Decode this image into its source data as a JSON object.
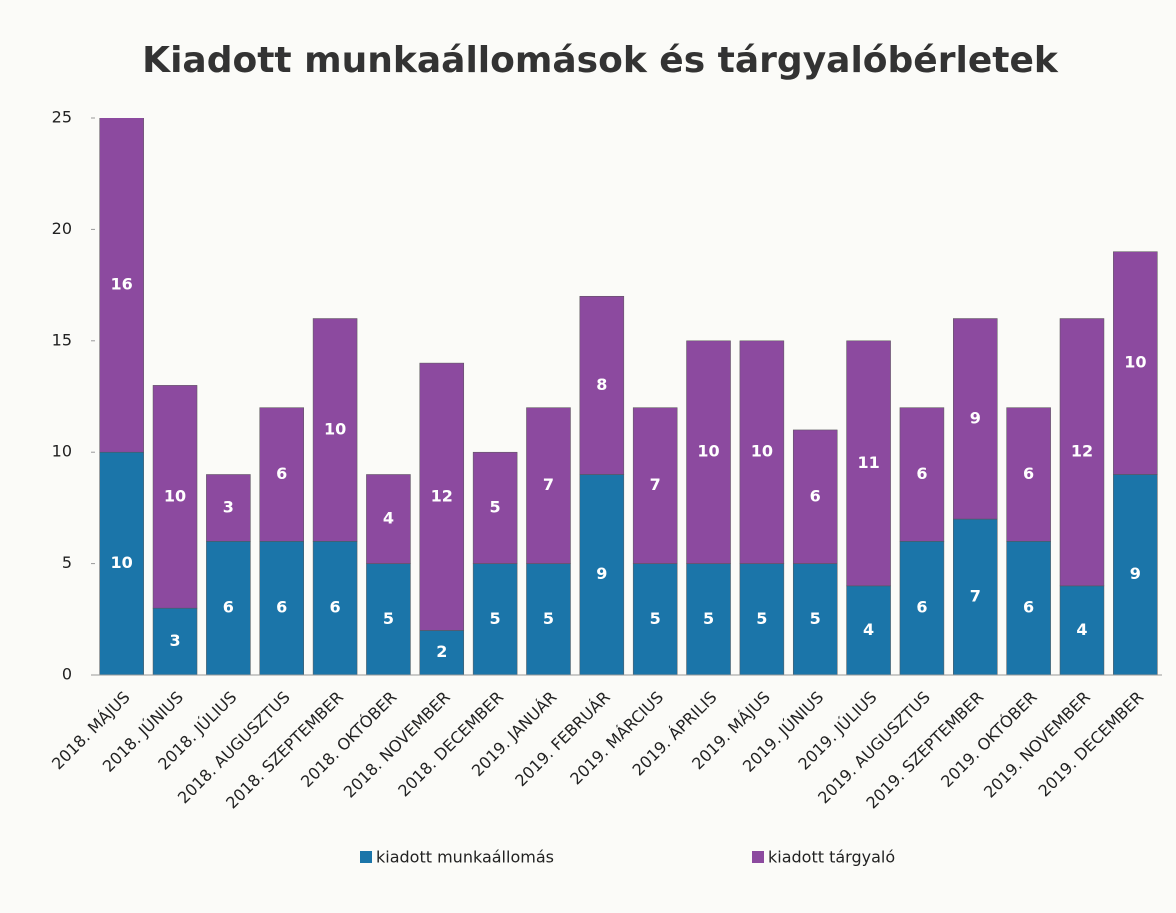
{
  "chart_data": {
    "type": "stacked_bar",
    "title": "Kiadott munkaállomások és tárgyalóbérletek",
    "categories": [
      "2018. MÁJUS",
      "2018. JÚNIUS",
      "2018. JÚLIUS",
      "2018. AUGUSZTUS",
      "2018. SZEPTEMBER",
      "2018. OKTÓBER",
      "2018. NOVEMBER",
      "2018. DECEMBER",
      "2019. JANUÁR",
      "2019. FEBRUÁR",
      "2019. MÁRCIUS",
      "2019. ÁPRILIS",
      "2019. MÁJUS",
      "2019. JÚNIUS",
      "2019. JÚLIUS",
      "2019. AUGUSZTUS",
      "2019. SZEPTEMBER",
      "2019. OKTÓBER",
      "2019. NOVEMBER",
      "2019. DECEMBER"
    ],
    "series": [
      {
        "name": "kiadott munkaállomás",
        "color": "#1b75a9",
        "values": [
          10,
          3,
          6,
          6,
          6,
          5,
          2,
          5,
          5,
          9,
          5,
          5,
          5,
          5,
          4,
          6,
          7,
          6,
          4,
          9
        ]
      },
      {
        "name": "kiadott tárgyaló",
        "color": "#8c4a9f",
        "values": [
          16,
          10,
          3,
          6,
          10,
          4,
          12,
          5,
          7,
          8,
          7,
          10,
          10,
          6,
          11,
          6,
          9,
          6,
          12,
          10
        ]
      }
    ],
    "ylim": [
      0,
      25
    ],
    "yticks": [
      0,
      5,
      10,
      15,
      20,
      25
    ],
    "legend": "bottom"
  }
}
